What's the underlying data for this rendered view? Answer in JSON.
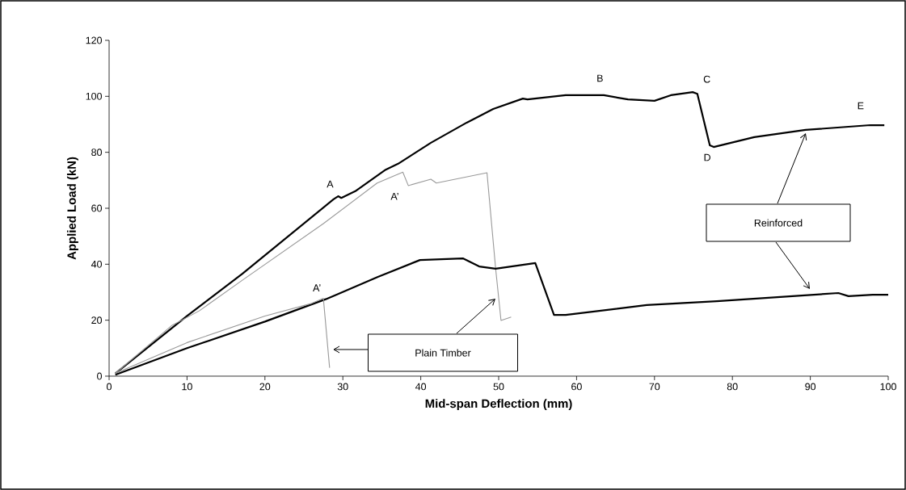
{
  "chart_data": {
    "type": "line",
    "xlabel": "Mid-span Deflection (mm)",
    "ylabel": "Applied Load (kN)",
    "xlim": [
      0,
      100
    ],
    "ylim": [
      0,
      120
    ],
    "xticks": [
      0,
      10,
      20,
      30,
      40,
      50,
      60,
      70,
      80,
      90,
      100
    ],
    "yticks": [
      0,
      20,
      40,
      60,
      80,
      100,
      120
    ],
    "grid": false,
    "marker": "none",
    "line_style": "solid",
    "series": [
      {
        "color": "#000000",
        "x": [
          0.8,
          10,
          17.1,
          28.8,
          29.4,
          29.8,
          31.6,
          35.5,
          37.1,
          41.3,
          45.9,
          49.3,
          53.1,
          53.7,
          58.6,
          63.5,
          66.6,
          70.0,
          72.1,
          74.9,
          75.5,
          77.1,
          77.6,
          82.8,
          89.4,
          97.7,
          99.5
        ],
        "values": [
          1,
          21.5,
          36.6,
          63.2,
          64.3,
          63.7,
          66.1,
          73.8,
          75.9,
          83.4,
          90.6,
          95.5,
          99.2,
          98.9,
          100.4,
          100.4,
          98.9,
          98.4,
          100.4,
          101.5,
          100.9,
          82.5,
          81.9,
          85.4,
          88.0,
          89.7,
          89.7
        ]
      },
      {
        "color": "#999999",
        "x": [
          0.8,
          8,
          11.6,
          17.1,
          27.5,
          34.4,
          37.7,
          38.4,
          41.3,
          42.0,
          48.5,
          49.6,
          50.3,
          51.6
        ],
        "values": [
          1,
          18,
          23.4,
          34.3,
          54.5,
          69.0,
          72.9,
          68.1,
          70.4,
          69.0,
          72.7,
          38.7,
          19.9,
          21.1
        ]
      },
      {
        "color": "#000000",
        "x": [
          0.8,
          10,
          20,
          27.8,
          29.2,
          34.5,
          39.9,
          45.4,
          47.5,
          49.6,
          54.7,
          57.1,
          58.6,
          69.0,
          78.0,
          93.6,
          94.9,
          98.0,
          100
        ],
        "values": [
          0.5,
          10,
          19.5,
          27.5,
          29.1,
          35.5,
          41.5,
          42.1,
          39.2,
          38.4,
          40.4,
          21.9,
          21.9,
          25.4,
          26.8,
          29.7,
          28.6,
          29.1,
          29.1
        ]
      },
      {
        "color": "#999999",
        "x": [
          0.8,
          10,
          20,
          26,
          27.5,
          28.3
        ],
        "values": [
          1,
          12,
          21.5,
          26,
          27.8,
          3
        ]
      }
    ],
    "annotations": [
      {
        "text": "A",
        "x": 29.4,
        "y": 64.3
      },
      {
        "text": "A’",
        "x": 37.7,
        "y": 72.9
      },
      {
        "text": "A’",
        "x": 27.5,
        "y": 27.8
      },
      {
        "text": "B",
        "x": 63,
        "y": 100.4
      },
      {
        "text": "C",
        "x": 76,
        "y": 101.5
      },
      {
        "text": "D",
        "x": 77.6,
        "y": 81.9
      },
      {
        "text": "E",
        "x": 97.7,
        "y": 89.7
      },
      "Reinforced",
      "Plain Timber"
    ]
  }
}
